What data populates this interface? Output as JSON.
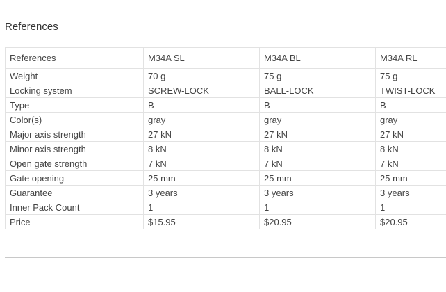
{
  "section_title": "References",
  "table": {
    "header": [
      "References",
      "M34A SL",
      "M34A BL",
      "M34A RL"
    ],
    "rows": [
      [
        "Weight",
        "70 g",
        "75 g",
        "75 g"
      ],
      [
        "Locking system",
        "SCREW-LOCK",
        "BALL-LOCK",
        "TWIST-LOCK"
      ],
      [
        "Type",
        "B",
        "B",
        "B"
      ],
      [
        "Color(s)",
        "gray",
        "gray",
        "gray"
      ],
      [
        "Major axis strength",
        "27 kN",
        "27 kN",
        "27 kN"
      ],
      [
        "Minor axis strength",
        "8 kN",
        "8 kN",
        "8 kN"
      ],
      [
        "Open gate strength",
        "7 kN",
        "7 kN",
        "7 kN"
      ],
      [
        "Gate opening",
        "25 mm",
        "25 mm",
        "25 mm"
      ],
      [
        "Guarantee",
        "3 years",
        "3 years",
        "3 years"
      ],
      [
        "Inner Pack Count",
        "1",
        "1",
        "1"
      ],
      [
        "Price",
        "$15.95",
        "$20.95",
        "$20.95"
      ]
    ]
  }
}
